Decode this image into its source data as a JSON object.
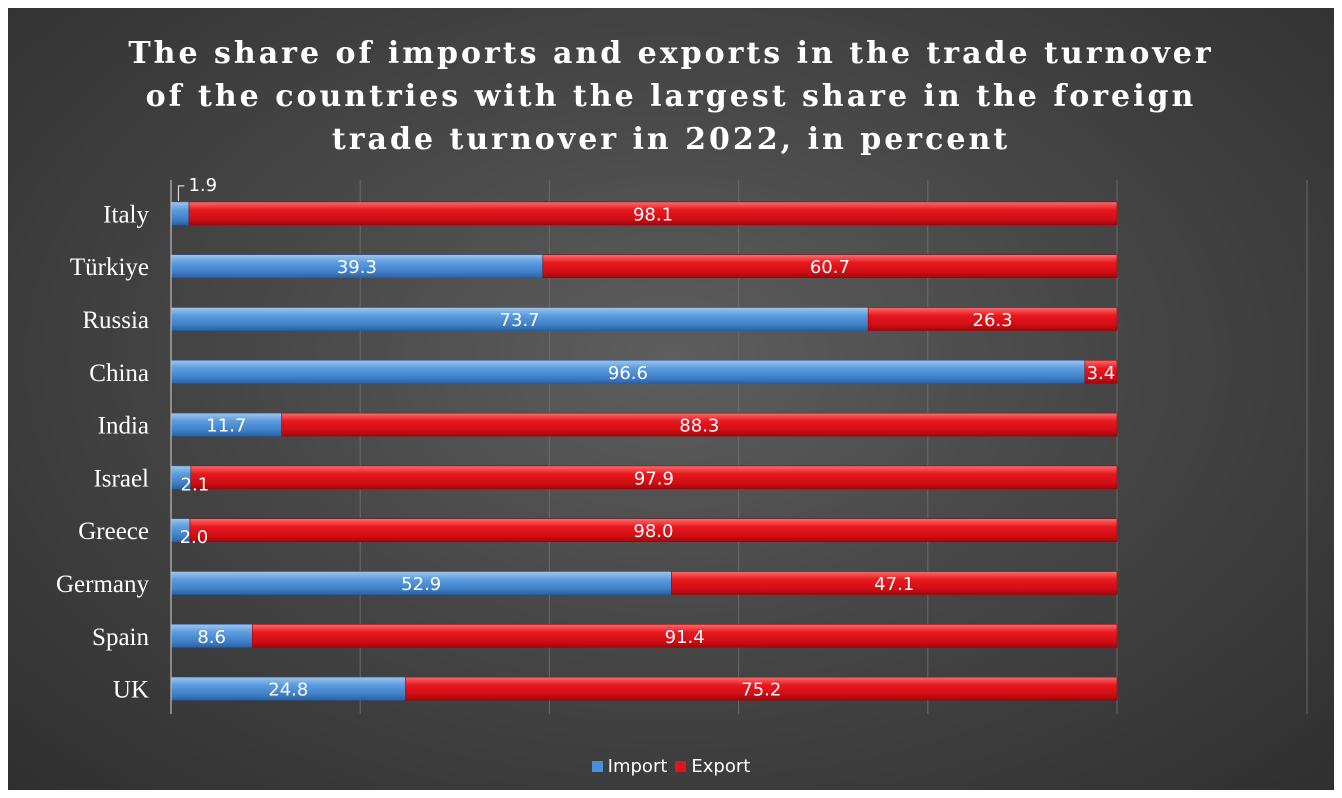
{
  "chart_data": {
    "type": "bar",
    "orientation": "horizontal",
    "stacked": "percent",
    "title": "The share of imports and exports in the trade turnover of the countries with the largest share in the foreign trade turnover in 2022, in percent",
    "title_lines": [
      "The share of imports and exports in the trade turnover",
      "of the countries with the largest share in the foreign",
      "trade turnover in 2022, in percent"
    ],
    "categories": [
      "Italy",
      "Türkiye",
      "Russia",
      "China",
      "India",
      "Israel",
      "Greece",
      "Germany",
      "Spain",
      "UK"
    ],
    "series": [
      {
        "name": "Import",
        "color": "#4a90d9",
        "values": [
          1.9,
          39.3,
          73.7,
          96.6,
          11.7,
          2.1,
          2.0,
          52.9,
          8.6,
          24.8
        ],
        "labels": [
          "1.9",
          "39.3",
          "73.7",
          "96.6",
          "11.7",
          "2.1",
          "2.0",
          "52.9",
          "8.6",
          "24.8"
        ]
      },
      {
        "name": "Export",
        "color": "#e0141c",
        "values": [
          98.1,
          60.7,
          26.3,
          3.4,
          88.3,
          97.9,
          98.0,
          47.1,
          91.4,
          75.2
        ],
        "labels": [
          "98.1",
          "60.7",
          "26.3",
          "3.4",
          "88.3",
          "97.9",
          "98.0",
          "47.1",
          "91.4",
          "75.2"
        ]
      }
    ],
    "xlim": [
      0,
      100
    ],
    "xlabel": "",
    "ylabel": "",
    "grid": true,
    "legend_position": "bottom"
  }
}
